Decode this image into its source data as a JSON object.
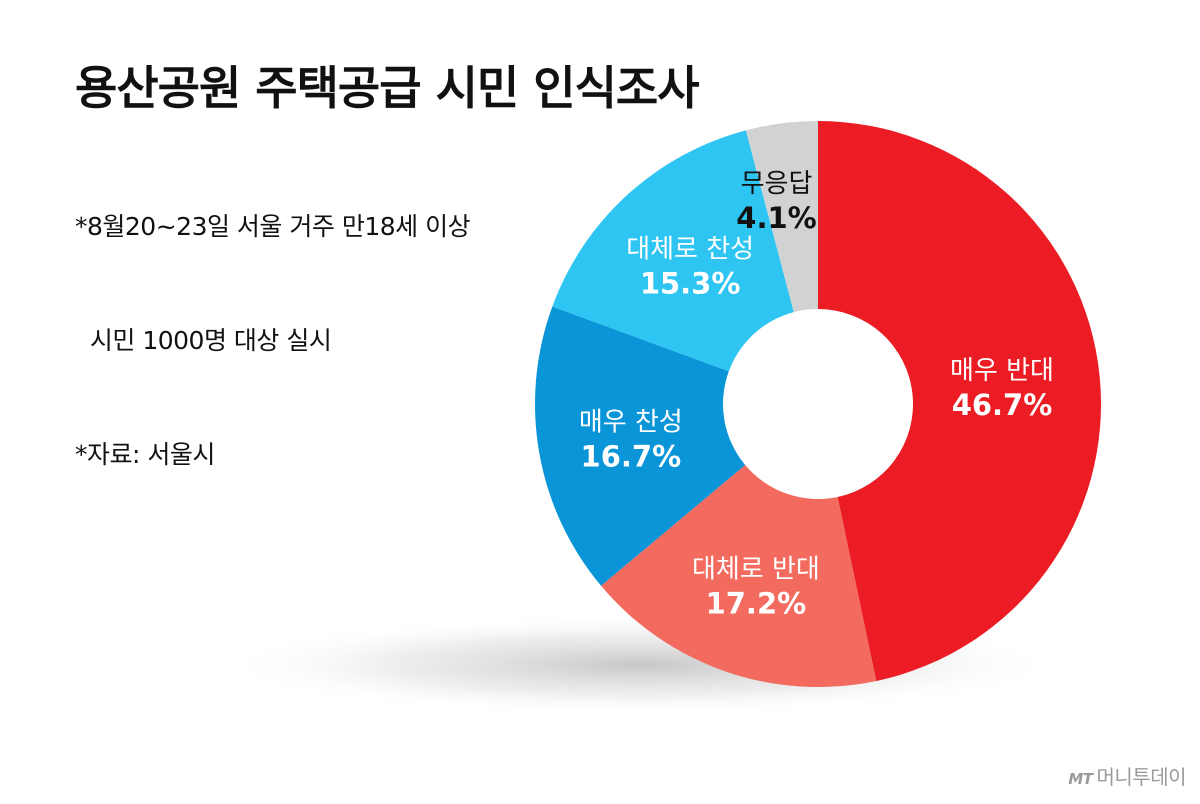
{
  "title": "용산공원 주택공급 시민 인식조사",
  "notes": [
    "*8월20~23일 서울 거주 만18세 이상",
    "  시민 1000명 대상 실시",
    "*자료: 서울시"
  ],
  "logo": {
    "mark": "MT",
    "name": "머니투데이"
  },
  "chart_data": {
    "type": "pie",
    "donut": true,
    "title": "",
    "slices": [
      {
        "label": "매우 반대",
        "value": 46.7,
        "display": "46.7%",
        "color": "#ec1c24",
        "text_color": "#ffffff"
      },
      {
        "label": "대체로 반대",
        "value": 17.2,
        "display": "17.2%",
        "color": "#f26b5e",
        "text_color": "#ffffff"
      },
      {
        "label": "매우 찬성",
        "value": 16.7,
        "display": "16.7%",
        "color": "#0a95d8",
        "text_color": "#ffffff"
      },
      {
        "label": "대체로 찬성",
        "value": 15.3,
        "display": "15.3%",
        "color": "#2ec5f2",
        "text_color": "#ffffff"
      },
      {
        "label": "무응답",
        "value": 4.1,
        "display": "4.1%",
        "color": "#d0d2d3",
        "text_color": "#111111"
      }
    ]
  }
}
